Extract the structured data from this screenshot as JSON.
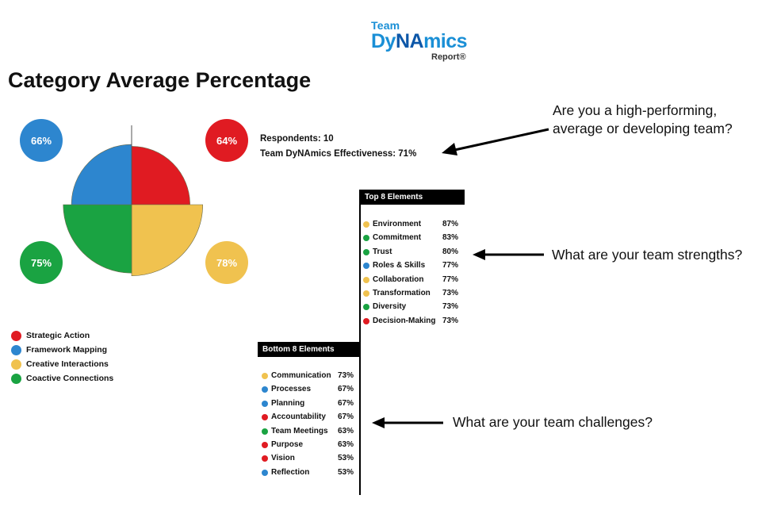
{
  "logo": {
    "team": "Team",
    "dy": "Dy",
    "na": "NA",
    "mics": "mics",
    "report": "Report®"
  },
  "title": "Category Average Percentage",
  "chart_data": {
    "type": "pie",
    "slices": [
      {
        "name": "Strategic Action",
        "value": 64,
        "label": "64%",
        "color": "#e01b22"
      },
      {
        "name": "Creative Interactions",
        "value": 78,
        "label": "78%",
        "color": "#f0c24f"
      },
      {
        "name": "Coactive Connections",
        "value": 75,
        "label": "75%",
        "color": "#1aa342"
      },
      {
        "name": "Framework Mapping",
        "value": 66,
        "label": "66%",
        "color": "#2d86cf"
      }
    ]
  },
  "legend": [
    {
      "label": "Strategic Action",
      "color": "#e01b22"
    },
    {
      "label": "Framework Mapping",
      "color": "#2d86cf"
    },
    {
      "label": "Creative Interactions",
      "color": "#f0c24f"
    },
    {
      "label": "Coactive Connections",
      "color": "#1aa342"
    }
  ],
  "summary": {
    "respondents": "Respondents: 10",
    "effectiveness": "Team DyNAmics Effectiveness: 71%"
  },
  "top": {
    "header": "Top 8 Elements",
    "items": [
      {
        "name": "Environment",
        "pct": "87%",
        "color": "#f0c24f"
      },
      {
        "name": "Commitment",
        "pct": "83%",
        "color": "#1aa342"
      },
      {
        "name": "Trust",
        "pct": "80%",
        "color": "#1aa342"
      },
      {
        "name": "Roles & Skills",
        "pct": "77%",
        "color": "#2d86cf"
      },
      {
        "name": "Collaboration",
        "pct": "77%",
        "color": "#f0c24f"
      },
      {
        "name": "Transformation",
        "pct": "73%",
        "color": "#f0c24f"
      },
      {
        "name": "Diversity",
        "pct": "73%",
        "color": "#1aa342"
      },
      {
        "name": "Decision-Making",
        "pct": "73%",
        "color": "#e01b22"
      }
    ]
  },
  "bottom": {
    "header": "Bottom 8 Elements",
    "items": [
      {
        "name": "Communication",
        "pct": "73%",
        "color": "#f0c24f"
      },
      {
        "name": "Processes",
        "pct": "67%",
        "color": "#2d86cf"
      },
      {
        "name": "Planning",
        "pct": "67%",
        "color": "#2d86cf"
      },
      {
        "name": "Accountability",
        "pct": "67%",
        "color": "#e01b22"
      },
      {
        "name": "Team Meetings",
        "pct": "63%",
        "color": "#1aa342"
      },
      {
        "name": "Purpose",
        "pct": "63%",
        "color": "#e01b22"
      },
      {
        "name": "Vision",
        "pct": "53%",
        "color": "#e01b22"
      },
      {
        "name": "Reflection",
        "pct": "53%",
        "color": "#2d86cf"
      }
    ]
  },
  "annotations": {
    "q1_line1": "Are you a high-performing,",
    "q1_line2": "average or developing team?",
    "q2": "What are your team strengths?",
    "q3": "What are your team challenges?"
  }
}
